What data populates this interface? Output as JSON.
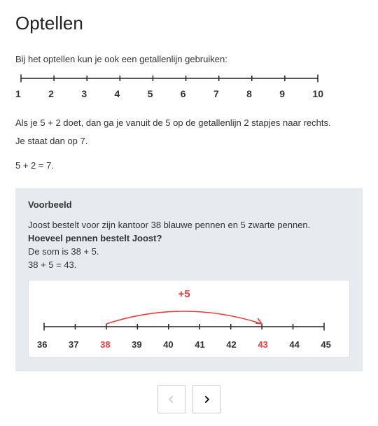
{
  "title": "Optellen",
  "intro": "Bij het optellen kun je ook een getallenlijn gebruiken:",
  "numberline1": {
    "type": "numberline",
    "start": 1,
    "end": 10,
    "labels": [
      "1",
      "2",
      "3",
      "4",
      "5",
      "6",
      "7",
      "8",
      "9",
      "10"
    ],
    "line_color": "#222222",
    "tick_height": 8,
    "label_fontsize": 14
  },
  "para1": "Als je 5 + 2 doet, dan ga je vanuit de 5 op de getallenlijn 2 stapjes naar rechts.",
  "para2": "Je staat dan op 7.",
  "equation1": "5 + 2 = 7.",
  "example": {
    "heading": "Voorbeeld",
    "line1": "Joost bestelt voor zijn kantoor 38 blauwe pennen en 5 zwarte pennen.",
    "question": "Hoeveel pennen bestelt Joost?",
    "line3": "De som is 38 + 5.",
    "result": "38 + 5 = 43.",
    "diagram": {
      "type": "numberline-arc",
      "labels": [
        "36",
        "37",
        "38",
        "39",
        "40",
        "41",
        "42",
        "43",
        "44",
        "45"
      ],
      "highlight_indices": [
        2,
        7
      ],
      "arc_from_index": 2,
      "arc_to_index": 7,
      "arc_label": "+5",
      "line_color": "#222222",
      "arc_color": "#e83e3e",
      "highlight_color": "#e83e3e",
      "arc_label_fontsize": 15,
      "label_fontsize": 13,
      "background": "#ffffff"
    },
    "box_background": "#e7ebef"
  },
  "nav": {
    "prev_enabled": false,
    "next_enabled": true
  },
  "colors": {
    "text": "#333333",
    "accent": "#e83e3e",
    "box_bg": "#e7ebef",
    "border": "#cccccc"
  }
}
